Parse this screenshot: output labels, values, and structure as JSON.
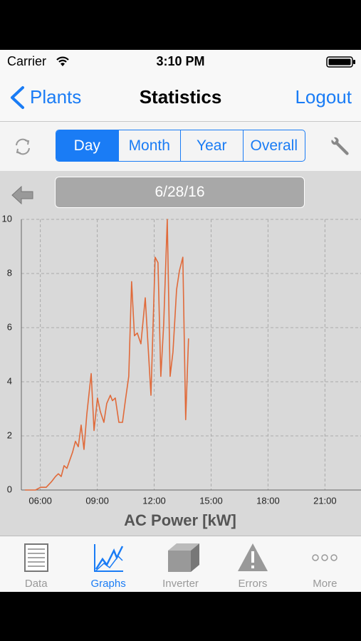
{
  "status_bar": {
    "carrier": "Carrier",
    "time": "3:10 PM"
  },
  "nav": {
    "back": "Plants",
    "title": "Statistics",
    "right": "Logout"
  },
  "segments": {
    "items": [
      "Day",
      "Month",
      "Year",
      "Overall"
    ],
    "selected": 0
  },
  "date": "6/28/16",
  "chart_data": {
    "type": "line",
    "title": "AC Power [kW]",
    "x": [
      5.19,
      5.75,
      6.01,
      6.31,
      6.58,
      6.8,
      6.95,
      7.1,
      7.25,
      7.4,
      7.55,
      7.7,
      7.85,
      8.0,
      8.15,
      8.3,
      8.45,
      8.68,
      8.83,
      9.01,
      9.16,
      9.35,
      9.5,
      9.69,
      9.8,
      9.95,
      10.14,
      10.33,
      10.48,
      10.66,
      10.81,
      10.96,
      11.11,
      11.3,
      11.53,
      11.83,
      12.05,
      12.2,
      12.35,
      12.5,
      12.69,
      12.84,
      12.99,
      13.18,
      13.33,
      13.51,
      13.66,
      13.81
    ],
    "series": [
      {
        "color": "#e06a3a",
        "values": [
          0,
          0,
          0.1,
          0.1,
          0.3,
          0.5,
          0.6,
          0.5,
          0.9,
          0.8,
          1.1,
          1.4,
          1.8,
          1.6,
          2.4,
          1.5,
          2.8,
          4.3,
          2.2,
          3.4,
          2.9,
          2.5,
          3.2,
          3.5,
          3.3,
          3.4,
          2.5,
          2.5,
          3.3,
          4.2,
          7.7,
          5.7,
          5.8,
          5.4,
          7.1,
          3.5,
          8.6,
          8.4,
          4.2,
          6.1,
          10,
          4.2,
          5.1,
          7.4,
          8.1,
          8.6,
          2.6,
          5.6
        ]
      }
    ],
    "xlim": [
      5,
      22.9
    ],
    "xticks": [
      {
        "value": 6,
        "label": "06:00"
      },
      {
        "value": 9,
        "label": "09:00"
      },
      {
        "value": 12,
        "label": "12:00"
      },
      {
        "value": 15,
        "label": "15:00"
      },
      {
        "value": 18,
        "label": "18:00"
      },
      {
        "value": 21,
        "label": "21:00"
      }
    ],
    "ylim": [
      0,
      10
    ],
    "yticks": [
      0,
      2,
      4,
      6,
      8,
      10
    ],
    "grid": true
  },
  "tabs": {
    "items": [
      "Data",
      "Graphs",
      "Inverter",
      "Errors",
      "More"
    ],
    "selected": 1
  }
}
